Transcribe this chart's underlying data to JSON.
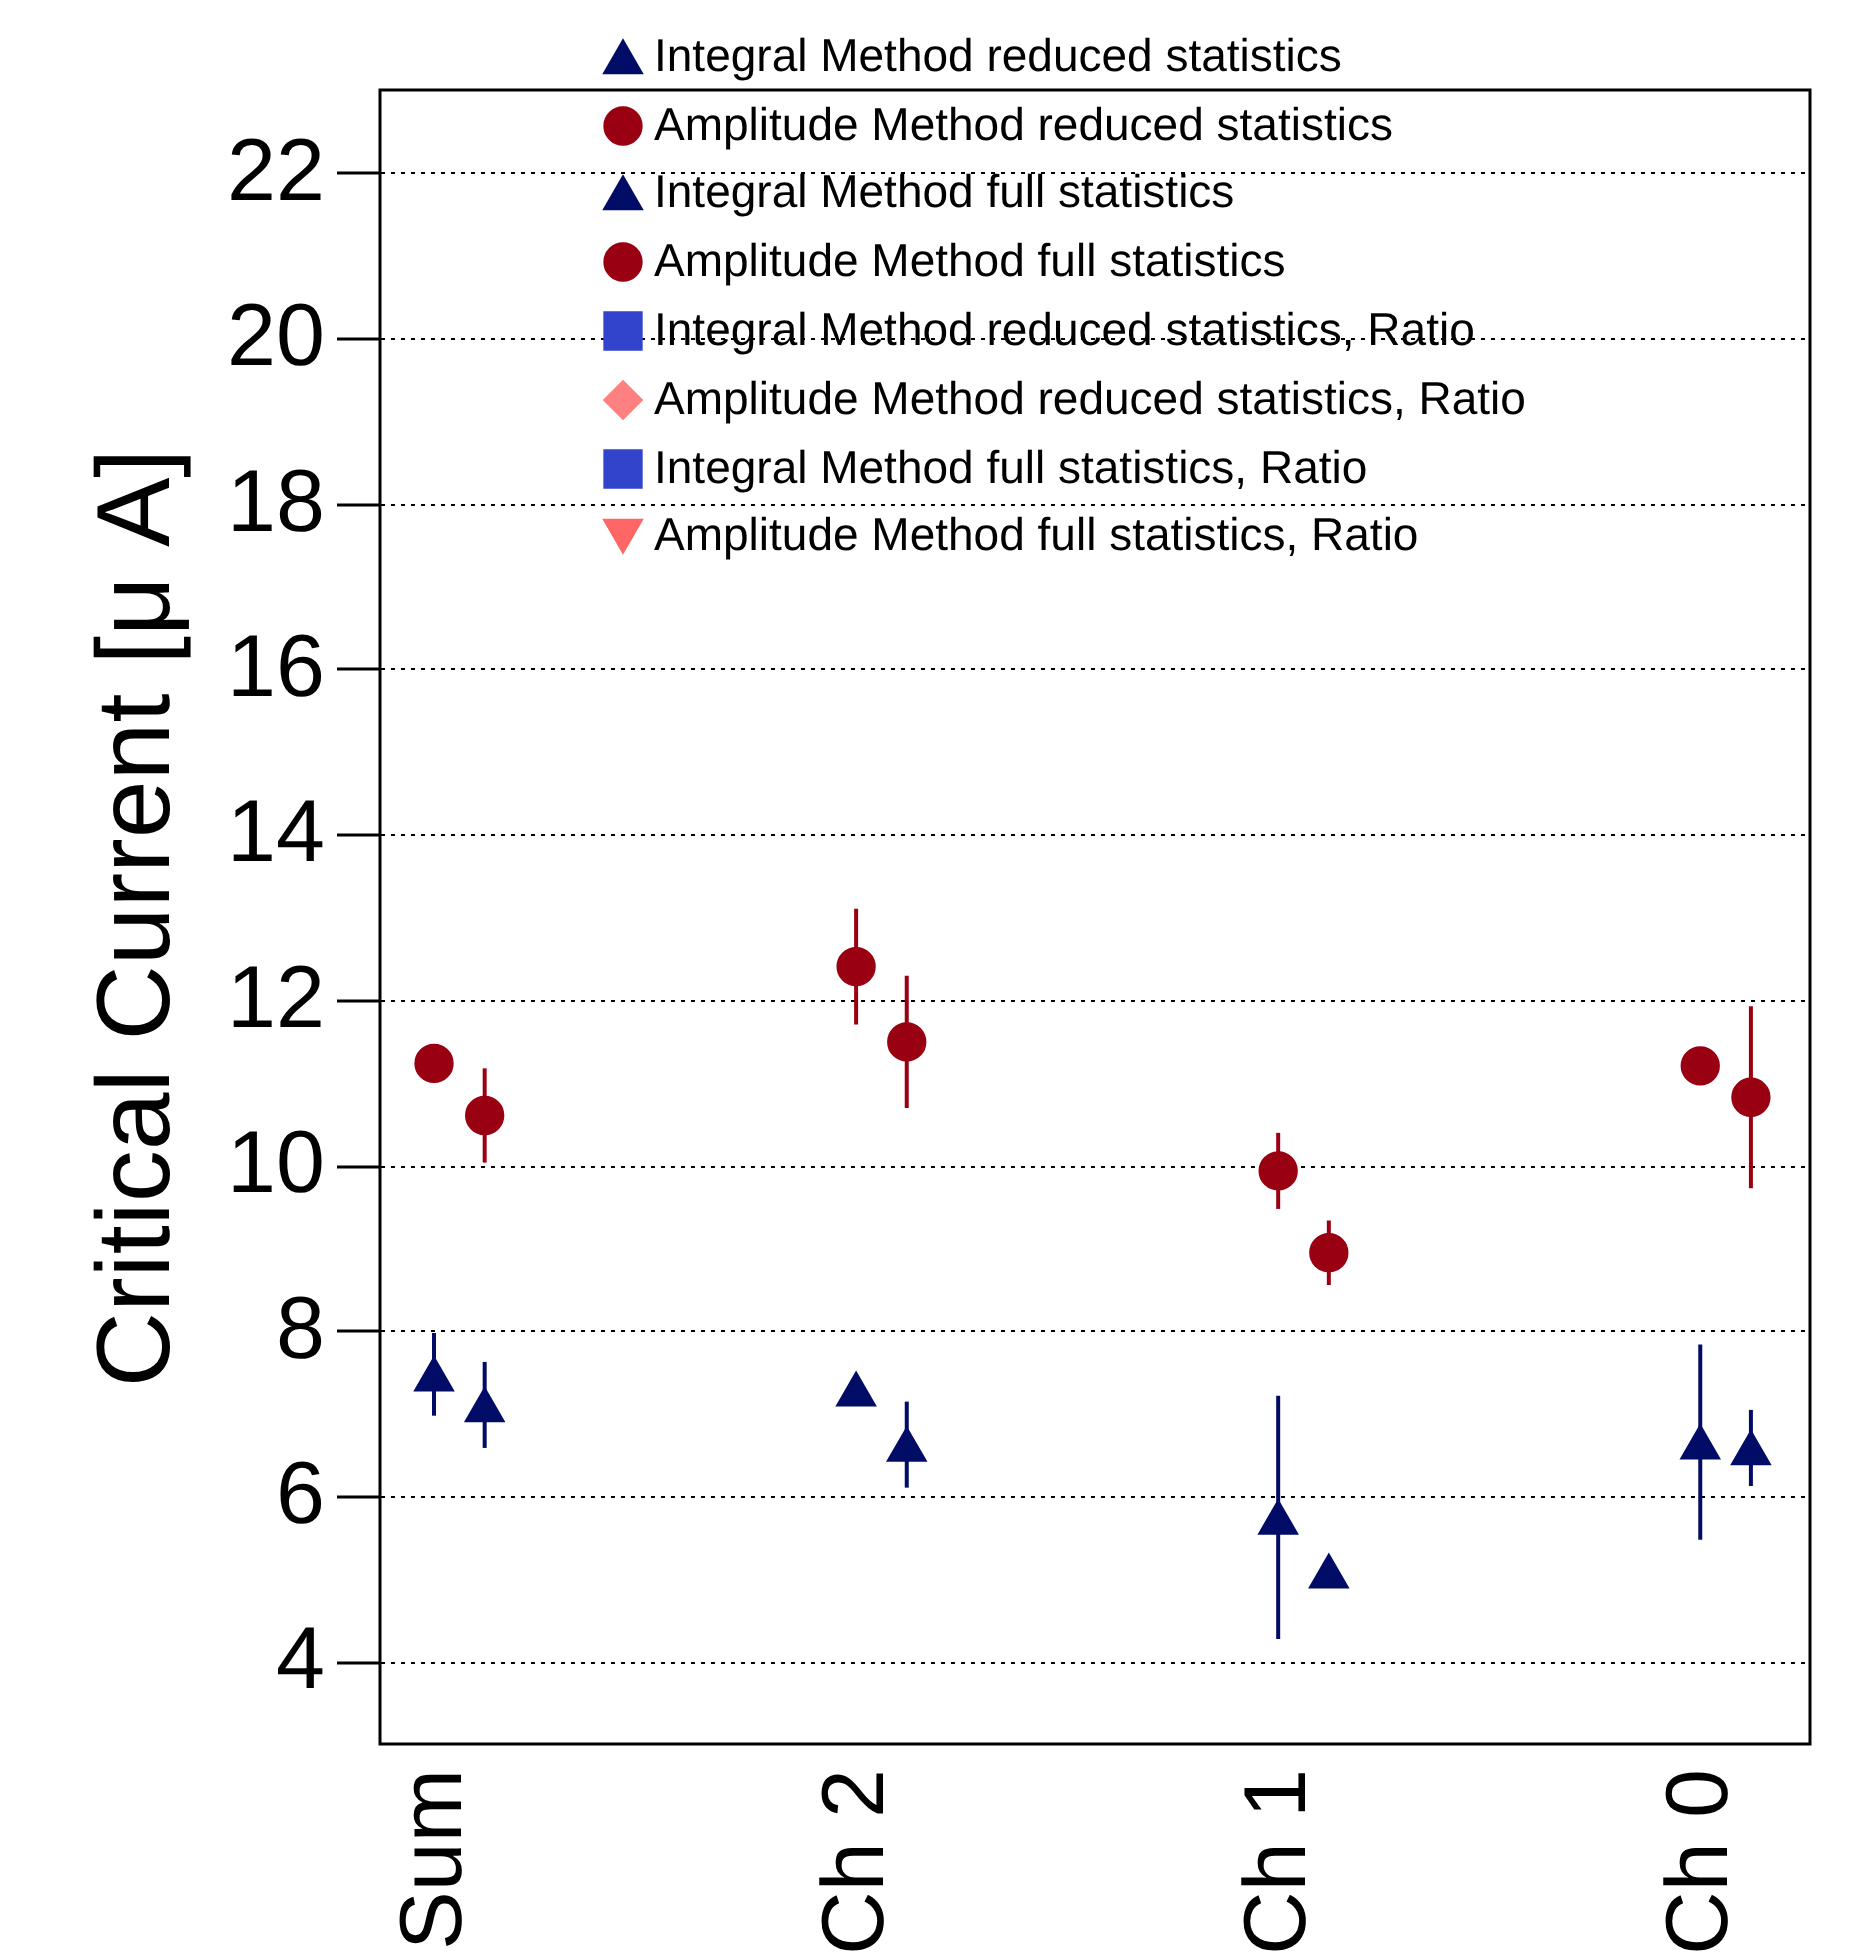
{
  "chart_data": {
    "type": "scatter",
    "ylabel": "Critical Current [μ A]",
    "categories": [
      "Sum",
      "Ch 2",
      "Ch 1",
      "Ch 0"
    ],
    "series": [
      {
        "name": "Integral Method reduced statistics",
        "color": "#000c66",
        "marker": "triangle",
        "values": [
          7.1,
          6.62,
          5.09,
          6.58
        ],
        "errors": [
          0.52,
          0.52,
          null,
          0.46
        ]
      },
      {
        "name": "Amplitude Method reduced statistics",
        "color": "#990011",
        "marker": "circle",
        "values": [
          10.6,
          11.49,
          8.94,
          10.82
        ],
        "errors": [
          0.57,
          0.8,
          0.39,
          1.1
        ]
      },
      {
        "name": "Integral Method full statistics",
        "color": "#000c66",
        "marker": "triangle",
        "values": [
          7.47,
          7.29,
          5.74,
          6.65
        ],
        "errors": [
          0.5,
          null,
          1.47,
          1.18
        ]
      },
      {
        "name": "Amplitude Method full statistics",
        "color": "#990011",
        "marker": "circle",
        "values": [
          11.23,
          12.4,
          9.93,
          11.2
        ],
        "errors": [
          0.15,
          0.7,
          0.46,
          0.15
        ]
      },
      {
        "name": "Integral Method reduced statistics, Ratio",
        "color": "#3344cc",
        "marker": "square",
        "values": [
          null,
          null,
          null,
          null
        ]
      },
      {
        "name": "Amplitude Method reduced statistics, Ratio",
        "color": "#ff8080",
        "marker": "diamond",
        "values": [
          null,
          null,
          null,
          null
        ]
      },
      {
        "name": "Integral Method full statistics, Ratio",
        "color": "#3344cc",
        "marker": "square",
        "values": [
          null,
          null,
          null,
          null
        ]
      },
      {
        "name": "Amplitude Method full statistics, Ratio",
        "color": "#ff6666",
        "marker": "triangle-down",
        "values": [
          null,
          null,
          null,
          null
        ]
      }
    ],
    "ylim": [
      3,
      23
    ],
    "yticks": [
      4,
      6,
      8,
      10,
      12,
      14,
      16,
      18,
      20,
      22
    ],
    "grid": "y",
    "legend": "top"
  }
}
